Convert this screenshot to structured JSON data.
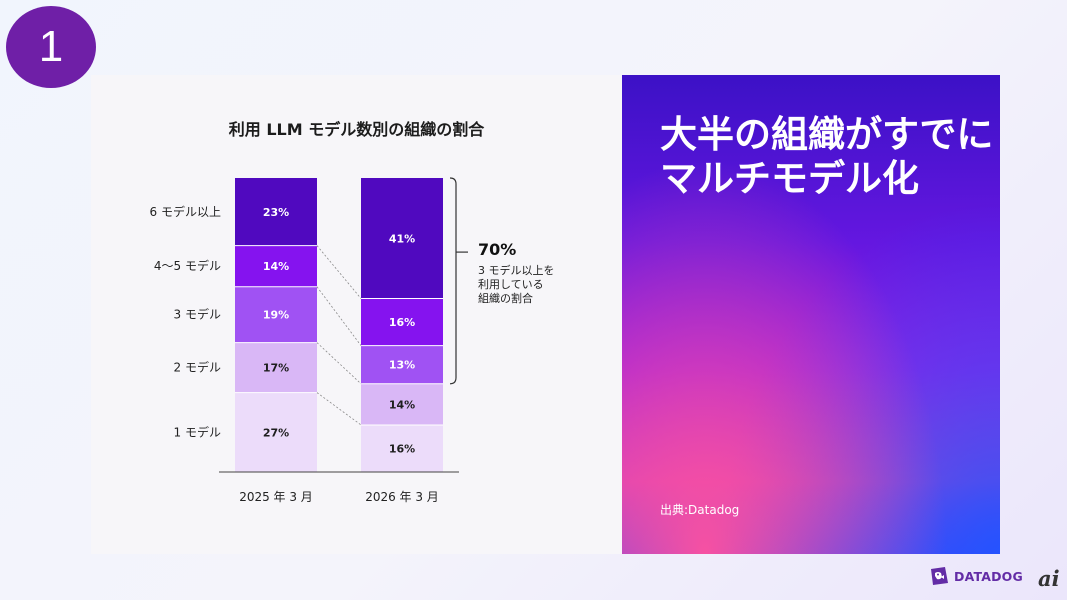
{
  "slide_number": "1",
  "chart_data": {
    "type": "bar",
    "stacked": true,
    "title": "利用 LLM モデル数別の組織の割合",
    "categories": [
      "2025 年 3 月",
      "2026 年 3 月"
    ],
    "category_labels": [
      "1 モデル",
      "2 モデル",
      "3 モデル",
      "4〜5 モデル",
      "6 モデル以上"
    ],
    "series": [
      {
        "name": "1 モデル",
        "values": [
          27,
          16
        ],
        "labels": [
          "27%",
          "16%"
        ]
      },
      {
        "name": "2 モデル",
        "values": [
          17,
          14
        ],
        "labels": [
          "17%",
          "14%"
        ]
      },
      {
        "name": "3 モデル",
        "values": [
          19,
          13
        ],
        "labels": [
          "19%",
          "13%"
        ]
      },
      {
        "name": "4〜5 モデル",
        "values": [
          14,
          16
        ],
        "labels": [
          "14%",
          "16%"
        ]
      },
      {
        "name": "6 モデル以上",
        "values": [
          23,
          41
        ],
        "labels": [
          "23%",
          "41%"
        ]
      }
    ],
    "ylim": [
      0,
      100
    ],
    "annotation": {
      "value": "70%",
      "text_lines": [
        "3 モデル以上を",
        "利用している",
        "組織の割合"
      ]
    },
    "colors": {
      "1 モデル": "#ecdcfa",
      "2 モデル": "#d9b7f6",
      "3 モデル": "#a052f3",
      "4〜5 モデル": "#8513ef",
      "6 モデル以上": "#5009bf",
      "light_label": "#ffffff",
      "dark_label": "#1e1e1e"
    }
  },
  "panel": {
    "heading_lines": [
      "大半の組織がすでに",
      "マルチモデル化"
    ],
    "source": "出典:Datadog"
  },
  "branding": {
    "logo_text": "DATADOG",
    "logo_icon": "datadog-dog-icon",
    "ai_mark": "ai"
  }
}
